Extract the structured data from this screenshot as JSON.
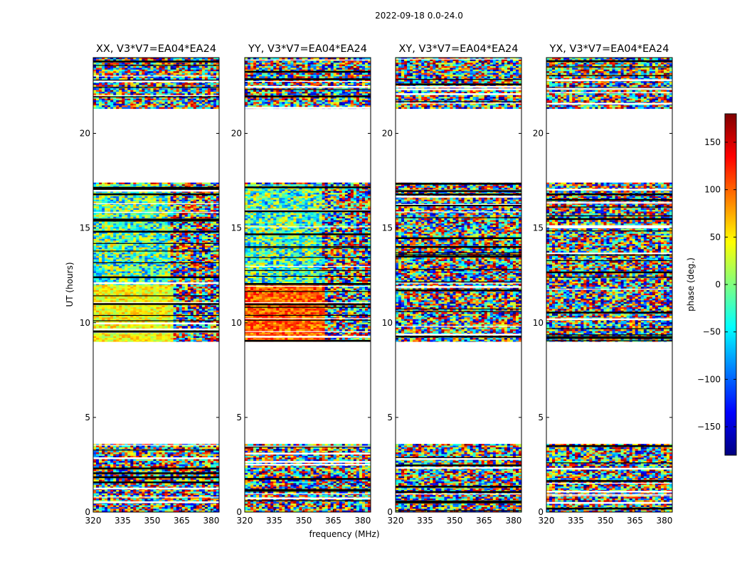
{
  "figure": {
    "suptitle": "2022-09-18 0.0-24.0"
  },
  "chart_data": {
    "type": "heatmap",
    "xlabel": "frequency (MHz)",
    "ylabel": "UT (hours)",
    "xlim": [
      320,
      384
    ],
    "ylim": [
      0,
      24
    ],
    "x_ticks": [
      320,
      335,
      350,
      365,
      380
    ],
    "y_ticks": [
      0,
      5,
      10,
      15,
      20
    ],
    "panels": [
      {
        "title": "XX, V3*V7=EA04*EA24",
        "pol": "XX"
      },
      {
        "title": "YY, V3*V7=EA04*EA24",
        "pol": "YY"
      },
      {
        "title": "XY, V3*V7=EA04*EA24",
        "pol": "XY"
      },
      {
        "title": "YX, V3*V7=EA04*EA24",
        "pol": "YX"
      }
    ],
    "data_blocks_ut": [
      [
        0.0,
        3.6
      ],
      [
        9.0,
        17.4
      ],
      [
        21.3,
        24.0
      ]
    ],
    "colorbar": {
      "label": "phase (deg.)",
      "range": [
        -180,
        180
      ],
      "ticks": [
        -150,
        -100,
        -50,
        0,
        50,
        100,
        150
      ],
      "tick_labels": [
        "−150",
        "−100",
        "−50",
        "0",
        "50",
        "100",
        "150"
      ],
      "colormap": [
        "#00007f",
        "#0000ff",
        "#007fff",
        "#00ffff",
        "#7fff7f",
        "#ffff00",
        "#ff7f00",
        "#ff0000",
        "#7f0000"
      ]
    }
  }
}
